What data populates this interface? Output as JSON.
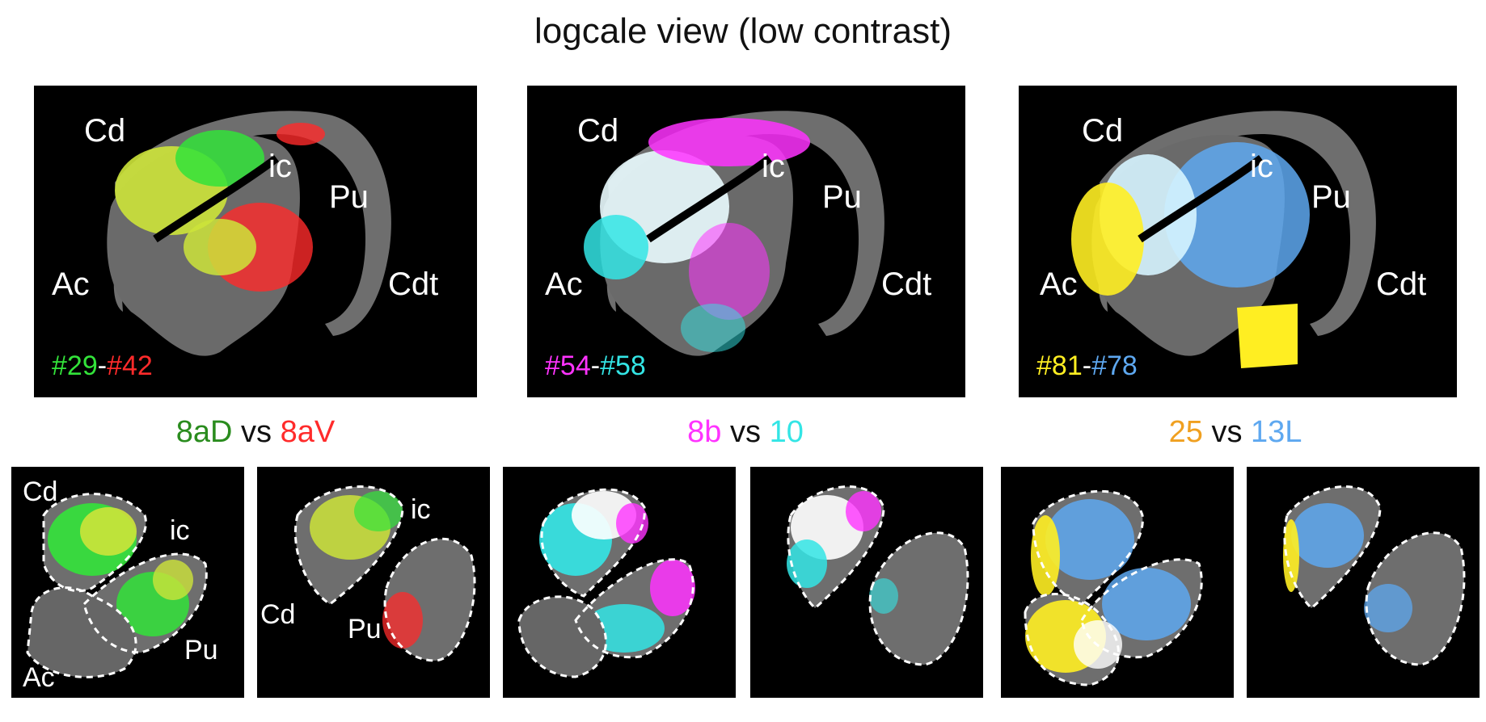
{
  "title": "logcale view (low contrast)",
  "colors": {
    "green": "#33e33a",
    "red": "#ff2b2b",
    "magenta": "#ff33ff",
    "cyan": "#33e5e5",
    "yellow": "#ffee22",
    "blue": "#5ea8f0",
    "orange": "#f0a020",
    "darkgreen": "#2a8c1e",
    "tissue": "#6e6e6e"
  },
  "top_panels": [
    {
      "labels": {
        "cd": "Cd",
        "ic": "ic",
        "pu": "Pu",
        "ac": "Ac",
        "cdt": "Cdt"
      },
      "case_a": "#29",
      "sep": "-",
      "case_b": "#42"
    },
    {
      "labels": {
        "cd": "Cd",
        "ic": "ic",
        "pu": "Pu",
        "ac": "Ac",
        "cdt": "Cdt"
      },
      "case_a": "#54",
      "sep": "-",
      "case_b": "#58"
    },
    {
      "labels": {
        "cd": "Cd",
        "ic": "ic",
        "pu": "Pu",
        "ac": "Ac",
        "cdt": "Cdt"
      },
      "case_a": "#81",
      "sep": "-",
      "case_b": "#78"
    }
  ],
  "comparisons": [
    {
      "a": "8aD",
      "vs": "vs",
      "b": "8aV"
    },
    {
      "a": "8b",
      "vs": "vs",
      "b": "10"
    },
    {
      "a": "25",
      "vs": "vs",
      "b": "13L"
    }
  ],
  "bottom_labels": {
    "p1": {
      "cd": "Cd",
      "ic": "ic",
      "pu": "Pu",
      "ac": "Ac"
    },
    "p2": {
      "ic": "ic",
      "cd": "Cd",
      "pu": "Pu"
    }
  }
}
